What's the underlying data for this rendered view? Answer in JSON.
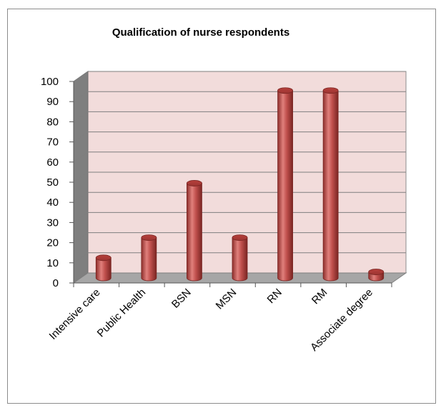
{
  "chart_data": {
    "type": "bar",
    "title": "Qualification of nurse respondents",
    "xlabel": "",
    "ylabel": "",
    "categories": [
      "Intensive care",
      "Public Health",
      "BSN",
      "MSN",
      "RN",
      "RM",
      "Associate degree"
    ],
    "values": [
      10,
      20,
      47,
      20,
      93,
      93,
      3
    ],
    "ylim": [
      0,
      100
    ],
    "yticks": [
      "0",
      "10",
      "20",
      "30",
      "40",
      "50",
      "60",
      "70",
      "80",
      "90",
      "100"
    ],
    "grid": true,
    "legend": "none",
    "colors": {
      "bar": "#c0504d",
      "bar_dark": "#8e2f2c",
      "bar_light": "#e0807c",
      "wall": "#f2dcdb",
      "floor": "#a6a6a6",
      "side_wall": "#7f7f7f"
    }
  }
}
